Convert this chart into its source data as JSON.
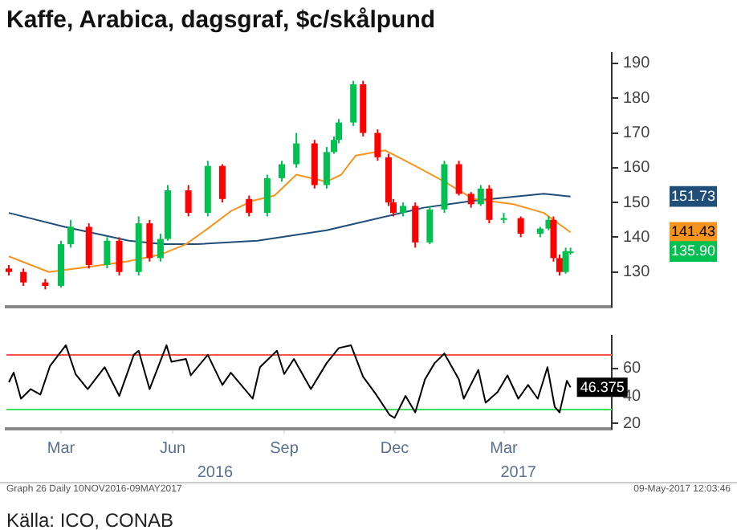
{
  "chart_data": [
    {
      "type": "candlestick",
      "title": "Kaffe, Arabica, dagsgraf, $c/skålpund",
      "xlim": [
        "2016-01-30",
        "2017-06-12"
      ],
      "ylim": [
        120,
        193
      ],
      "yticks": [
        130,
        140,
        150,
        160,
        170,
        180,
        190
      ],
      "y2lim": [
        120,
        193
      ],
      "y2ticks": [
        {
          "value": 151.73,
          "label": "151.73"
        },
        {
          "value": 141.43,
          "label": "141.43"
        },
        {
          "value": 135.9,
          "label": "135.90"
        }
      ],
      "tick_labels": "y",
      "series": [
        {
          "x": [
            "2016-02-01",
            "2016-02-13",
            "2016-03-02",
            "2016-03-15",
            "2016-03-23",
            "2016-04-07",
            "2016-04-22",
            "2016-05-02",
            "2016-05-18",
            "2016-05-27",
            "2016-06-05",
            "2016-06-11",
            "2016-06-28",
            "2016-07-14",
            "2016-07-26",
            "2016-08-17",
            "2016-09-01",
            "2016-09-13",
            "2016-09-25",
            "2016-10-10",
            "2016-10-20",
            "2016-10-26",
            "2016-10-30",
            "2016-11-11",
            "2016-11-19",
            "2016-12-01",
            "2016-12-10",
            "2016-12-14",
            "2016-12-22",
            "2017-01-01",
            "2017-01-13",
            "2017-01-25",
            "2017-02-06",
            "2017-02-16",
            "2017-02-24",
            "2017-03-03",
            "2017-03-15",
            "2017-03-29",
            "2017-04-14",
            "2017-04-21",
            "2017-04-25",
            "2017-04-30",
            "2017-05-05",
            "2017-05-09"
          ],
          "ohlc": [
            [
              131,
              132,
              129,
              130
            ],
            [
              130,
              131,
              126,
              127
            ],
            [
              127,
              128,
              125,
              126
            ],
            [
              126,
              139,
              125.5,
              138
            ],
            [
              138,
              145,
              137,
              143
            ],
            [
              143,
              144,
              131,
              132
            ],
            [
              132,
              140,
              131,
              139
            ],
            [
              139,
              140,
              129,
              130
            ],
            [
              130,
              146,
              129,
              144
            ],
            [
              144,
              145,
              133,
              134
            ],
            [
              134,
              141,
              133,
              139.5
            ],
            [
              139.5,
              155,
              139,
              153.5
            ],
            [
              153.5,
              155,
              146,
              147
            ],
            [
              147,
              162,
              146,
              160.5
            ],
            [
              160.5,
              161,
              150,
              151
            ],
            [
              151,
              152,
              146,
              147
            ],
            [
              147,
              158,
              146,
              157
            ],
            [
              157,
              162,
              156,
              161
            ],
            [
              161,
              170,
              160,
              167
            ],
            [
              167,
              168,
              154,
              155
            ],
            [
              155,
              166,
              154,
              164.5
            ],
            [
              164.5,
              169,
              164,
              168
            ],
            [
              168,
              174,
              167,
              173
            ],
            [
              173,
              185,
              172,
              184
            ],
            [
              184,
              185,
              169,
              170
            ],
            [
              170,
              171,
              162,
              163
            ],
            [
              163,
              164,
              149,
              150
            ],
            [
              150,
              151,
              146,
              147
            ],
            [
              147,
              150,
              146,
              149
            ],
            [
              149,
              150,
              137,
              138.5
            ],
            [
              138.5,
              149,
              138,
              148
            ],
            [
              148,
              162,
              147,
              161
            ],
            [
              161,
              162,
              152,
              152.5
            ],
            [
              152.5,
              153,
              148.5,
              149.5
            ],
            [
              149.5,
              155,
              149,
              154
            ],
            [
              154,
              155,
              144,
              145
            ],
            [
              145,
              147,
              144,
              145.5
            ],
            [
              145.5,
              146,
              140,
              141
            ],
            [
              141,
              143,
              140,
              142.5
            ],
            [
              142.5,
              146,
              142,
              145
            ],
            [
              145,
              146,
              133,
              134
            ],
            [
              134,
              135,
              129,
              130
            ],
            [
              130,
              137,
              129.5,
              136
            ],
            [
              135.5,
              137,
              135,
              135.9
            ]
          ],
          "colors": [
            "#ff0000",
            "#ff0000",
            "#ff0000",
            "#00c050",
            "#00c050",
            "#ff0000",
            "#00c050",
            "#ff0000",
            "#00c050",
            "#ff0000",
            "#00c050",
            "#00c050",
            "#ff0000",
            "#00c050",
            "#ff0000",
            "#ff0000",
            "#00c050",
            "#00c050",
            "#00c050",
            "#ff0000",
            "#00c050",
            "#00c050",
            "#00c050",
            "#00c050",
            "#ff0000",
            "#ff0000",
            "#ff0000",
            "#ff0000",
            "#00c050",
            "#ff0000",
            "#00c050",
            "#00c050",
            "#ff0000",
            "#ff0000",
            "#00c050",
            "#ff0000",
            "#00c050",
            "#ff0000",
            "#00c050",
            "#00c050",
            "#ff0000",
            "#ff0000",
            "#00c050",
            "#00c050"
          ]
        },
        {
          "type": "line",
          "color": "#f7941d",
          "x": [
            "2016-02-01",
            "2016-03-05",
            "2016-04-07",
            "2016-05-08",
            "2016-06-05",
            "2016-06-26",
            "2016-07-14",
            "2016-08-02",
            "2016-08-20",
            "2016-09-07",
            "2016-09-25",
            "2016-10-20",
            "2016-11-01",
            "2016-11-13",
            "2016-12-07",
            "2017-01-01",
            "2017-01-25",
            "2017-02-18",
            "2017-03-23",
            "2017-04-17",
            "2017-05-09"
          ],
          "values": [
            134.5,
            130,
            131.5,
            133,
            135,
            138,
            142.5,
            147.5,
            150.5,
            152,
            158,
            156,
            158,
            163.5,
            165,
            160.5,
            156,
            151,
            149.5,
            147,
            141.43
          ]
        },
        {
          "type": "line",
          "color": "#1f4e79",
          "x": [
            "2016-02-01",
            "2016-03-18",
            "2016-05-10",
            "2016-06-07",
            "2016-07-05",
            "2016-08-24",
            "2016-10-20",
            "2016-11-01",
            "2017-01-08",
            "2017-02-18",
            "2017-04-17",
            "2017-05-09"
          ],
          "values": [
            147,
            143,
            139,
            138,
            138,
            139,
            142,
            143,
            148.5,
            150.5,
            152.5,
            151.73
          ]
        }
      ]
    },
    {
      "type": "line",
      "xlim": [
        "2016-01-30",
        "2017-06-12"
      ],
      "ylim": [
        16,
        84
      ],
      "yticks": [
        20,
        40,
        60
      ],
      "xticks": [
        {
          "value": "2016-03-15",
          "label": "Mar"
        },
        {
          "value": "2016-06-15",
          "label": "Jun"
        },
        {
          "value": "2016-09-15",
          "label": "Sep"
        },
        {
          "value": "2016-12-15",
          "label": "Dec"
        },
        {
          "value": "2017-03-15",
          "label": "Mar"
        }
      ],
      "x2lim": [
        "2016-01-30",
        "2017-06-12"
      ],
      "x2ticks": [
        {
          "value": "2016-07-20",
          "label": "2016"
        },
        {
          "value": "2017-03-27",
          "label": "2017"
        }
      ],
      "ref_lines": [
        {
          "axis": "y",
          "value": 70,
          "color": "#ff5050"
        },
        {
          "axis": "y",
          "value": 30,
          "color": "#40e060"
        }
      ],
      "series": [
        {
          "color": "#000000",
          "x": [
            "2016-02-01",
            "2016-02-05",
            "2016-02-11",
            "2016-02-19",
            "2016-02-27",
            "2016-03-06",
            "2016-03-19",
            "2016-03-27",
            "2016-04-06",
            "2016-04-20",
            "2016-05-02",
            "2016-05-14",
            "2016-05-18",
            "2016-05-27",
            "2016-06-10",
            "2016-06-14",
            "2016-06-26",
            "2016-06-30",
            "2016-07-14",
            "2016-07-26",
            "2016-08-02",
            "2016-08-20",
            "2016-08-26",
            "2016-09-09",
            "2016-09-15",
            "2016-09-23",
            "2016-10-07",
            "2016-10-20",
            "2016-10-30",
            "2016-11-09",
            "2016-11-19",
            "2016-11-29",
            "2016-12-11",
            "2016-12-15",
            "2016-12-24",
            "2017-01-01",
            "2017-01-09",
            "2017-01-17",
            "2017-01-25",
            "2017-02-06",
            "2017-02-10",
            "2017-02-22",
            "2017-02-28",
            "2017-03-10",
            "2017-03-18",
            "2017-03-27",
            "2017-04-04",
            "2017-04-12",
            "2017-04-20",
            "2017-04-26",
            "2017-04-30",
            "2017-05-06",
            "2017-05-09"
          ],
          "values": [
            50,
            57,
            38,
            45,
            41,
            62,
            77,
            56,
            45,
            61,
            40,
            70,
            73,
            45,
            77,
            65,
            67,
            55,
            70,
            48,
            57,
            38,
            61,
            73,
            56,
            67,
            45,
            64,
            75,
            77,
            54,
            42,
            26,
            24,
            40,
            28,
            52,
            64,
            71,
            52,
            38,
            59,
            35,
            43,
            55,
            38,
            48,
            38,
            61,
            32,
            28,
            51,
            46.375
          ]
        }
      ],
      "annotations": [
        {
          "text": "46.375",
          "x": "2017-05-09",
          "y": 46.375
        },
        "Graph 26 Daily 10NOV2016-09MAY2017",
        "09-May-2017 12:03:46",
        "Källa: ICO, CONAB"
      ]
    }
  ]
}
